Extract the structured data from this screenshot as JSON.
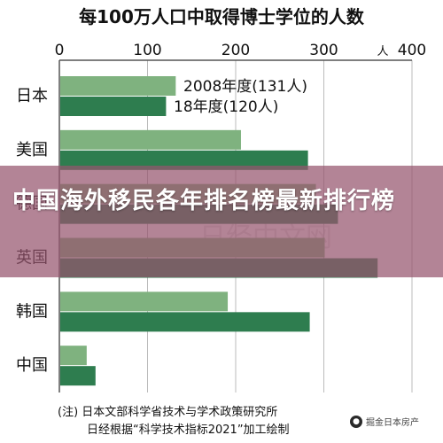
{
  "chart_data": {
    "type": "bar",
    "orientation": "horizontal",
    "title": "每100万人口中取得博士学位的人数",
    "unit_label": "人",
    "xlim": [
      0,
      400
    ],
    "x_ticks": [
      0,
      100,
      200,
      300,
      400
    ],
    "grid": true,
    "categories": [
      "日本",
      "美国",
      "德国",
      "英国",
      "韩国",
      "中国"
    ],
    "series": [
      {
        "name": "2008年度",
        "color": "#7fb27f",
        "values": [
          131,
          205,
          290,
          300,
          190,
          30
        ]
      },
      {
        "name": "18年度",
        "color": "#2e7d4f",
        "values": [
          120,
          281,
          315,
          360,
          283,
          40
        ]
      }
    ],
    "annotations": [
      "2008年度(131人)",
      "18年度(120人)"
    ],
    "notes": [
      "(注) 日本文部科学省技术与学术政策研究所",
      "日经根据“科学技术指标2021”加工绘制"
    ]
  },
  "overlay": {
    "title": "中国海外移民各年排名榜最新排行榜"
  },
  "watermark": {
    "icon": "wechat-icon",
    "text": "掘金日本房产"
  },
  "background_watermark": "日经中文网"
}
